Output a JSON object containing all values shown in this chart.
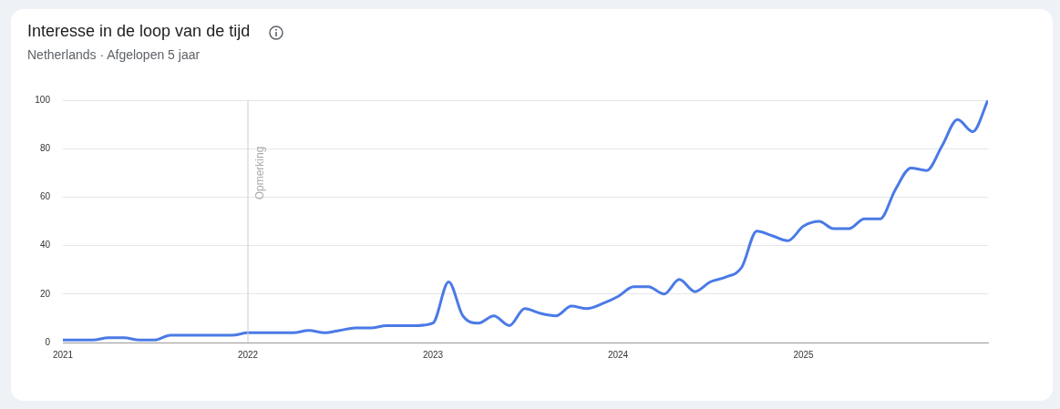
{
  "chart_data": {
    "type": "line",
    "title": "Interesse in de loop van de tijd",
    "subtitle": "Netherlands · Afgelopen 5 jaar",
    "x": [
      "2021-01",
      "2021-02",
      "2021-03",
      "2021-04",
      "2021-05",
      "2021-06",
      "2021-07",
      "2021-08",
      "2021-09",
      "2021-10",
      "2021-11",
      "2021-12",
      "2022-01",
      "2022-02",
      "2022-03",
      "2022-04",
      "2022-05",
      "2022-06",
      "2022-07",
      "2022-08",
      "2022-09",
      "2022-10",
      "2022-11",
      "2022-12",
      "2023-01",
      "2023-02",
      "2023-03",
      "2023-04",
      "2023-05",
      "2023-06",
      "2023-07",
      "2023-08",
      "2023-09",
      "2023-10",
      "2023-11",
      "2023-12",
      "2024-01",
      "2024-02",
      "2024-03",
      "2024-04",
      "2024-05",
      "2024-06",
      "2024-07",
      "2024-08",
      "2024-09",
      "2024-10",
      "2024-11",
      "2024-12",
      "2025-01",
      "2025-02",
      "2025-03",
      "2025-04",
      "2025-05",
      "2025-06",
      "2025-07",
      "2025-08",
      "2025-09",
      "2025-10",
      "2025-11",
      "2025-12",
      "2025-12-31"
    ],
    "series": [
      {
        "color": "#4a7ae6",
        "values": [
          1,
          1,
          1,
          2,
          2,
          1,
          1,
          3,
          3,
          3,
          3,
          3,
          4,
          4,
          4,
          4,
          5,
          4,
          5,
          6,
          6,
          7,
          7,
          7,
          8,
          25,
          11,
          8,
          11,
          7,
          14,
          12,
          11,
          15,
          14,
          16,
          19,
          23,
          23,
          20,
          26,
          21,
          25,
          27,
          31,
          46,
          44,
          42,
          48,
          50,
          47,
          47,
          51,
          51,
          63,
          72,
          71,
          81,
          92,
          87,
          100
        ]
      }
    ],
    "xlim": [
      "2021-01-01",
      "2025-12-31"
    ],
    "xticks": [
      {
        "value": "2021-01-01",
        "label": "2021"
      },
      {
        "value": "2022-01-01",
        "label": "2022"
      },
      {
        "value": "2023-01-01",
        "label": "2023"
      },
      {
        "value": "2024-01-01",
        "label": "2024"
      },
      {
        "value": "2025-01-01",
        "label": "2025"
      }
    ],
    "ylim": [
      0,
      100
    ],
    "yticks": [
      0,
      20,
      40,
      60,
      80,
      100
    ],
    "grid": "y",
    "marker": "none",
    "line_style": "solid",
    "legend": false,
    "ref_lines": [
      {
        "axis": "x",
        "value": "2022-01-01",
        "label": "Opmerking",
        "color": "#cccccc"
      }
    ]
  }
}
